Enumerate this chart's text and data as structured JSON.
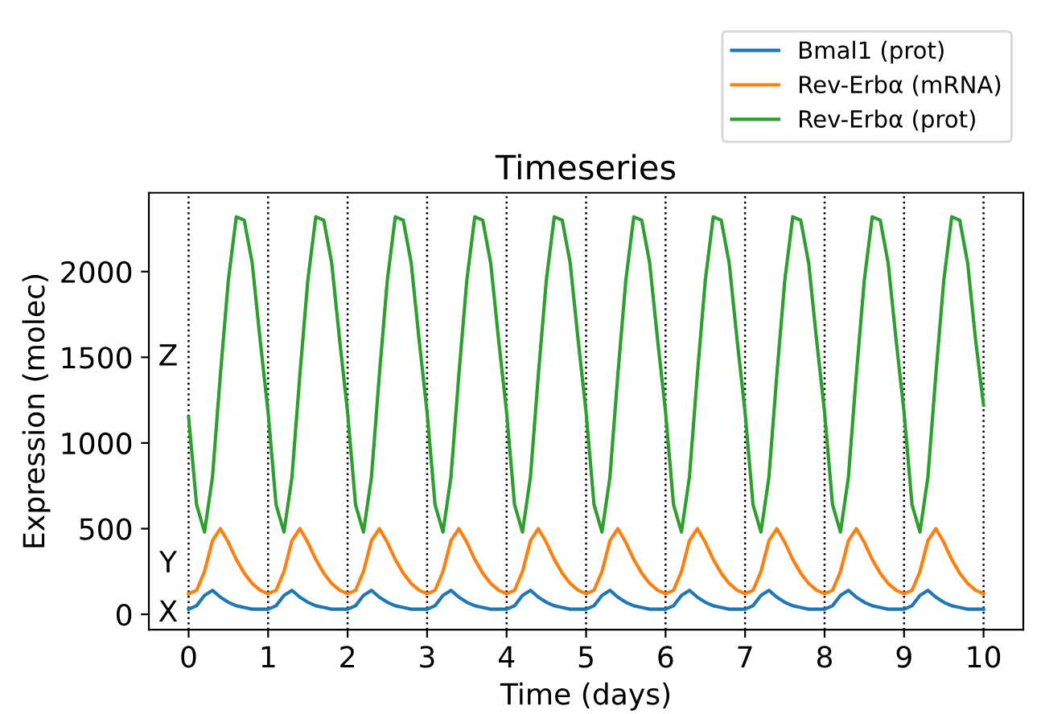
{
  "chart_data": {
    "type": "line",
    "title": "Timeseries",
    "xlabel": "Time (days)",
    "ylabel": "Expression (molec)",
    "x": [
      0,
      0.1,
      0.2,
      0.3,
      0.4,
      0.5,
      0.6,
      0.7,
      0.8,
      0.9,
      1,
      1.1,
      1.2,
      1.3,
      1.4,
      1.5,
      1.6,
      1.7,
      1.8,
      1.9,
      2,
      2.1,
      2.2,
      2.3,
      2.4,
      2.5,
      2.6,
      2.7,
      2.8,
      2.9,
      3,
      3.1,
      3.2,
      3.3,
      3.4,
      3.5,
      3.6,
      3.7,
      3.8,
      3.9,
      4,
      4.1,
      4.2,
      4.3,
      4.4,
      4.5,
      4.6,
      4.7,
      4.8,
      4.9,
      5,
      5.1,
      5.2,
      5.3,
      5.4,
      5.5,
      5.6,
      5.7,
      5.8,
      5.9,
      6,
      6.1,
      6.2,
      6.3,
      6.4,
      6.5,
      6.6,
      6.7,
      6.8,
      6.9,
      7,
      7.1,
      7.2,
      7.3,
      7.4,
      7.5,
      7.6,
      7.7,
      7.8,
      7.9,
      8,
      8.1,
      8.2,
      8.3,
      8.4,
      8.5,
      8.6,
      8.7,
      8.8,
      8.9,
      9,
      9.1,
      9.2,
      9.3,
      9.4,
      9.5,
      9.6,
      9.7,
      9.8,
      9.9,
      10
    ],
    "series": [
      {
        "name": "Bmal1 (prot)",
        "color": "#1f77b4",
        "values": [
          30,
          50,
          110,
          140,
          100,
          70,
          50,
          40,
          30,
          30,
          30,
          50,
          110,
          140,
          100,
          70,
          50,
          40,
          30,
          30,
          30,
          50,
          110,
          140,
          100,
          70,
          50,
          40,
          30,
          30,
          30,
          50,
          110,
          140,
          100,
          70,
          50,
          40,
          30,
          30,
          30,
          50,
          110,
          140,
          100,
          70,
          50,
          40,
          30,
          30,
          30,
          50,
          110,
          140,
          100,
          70,
          50,
          40,
          30,
          30,
          30,
          50,
          110,
          140,
          100,
          70,
          50,
          40,
          30,
          30,
          30,
          50,
          110,
          140,
          100,
          70,
          50,
          40,
          30,
          30,
          30,
          50,
          110,
          140,
          100,
          70,
          50,
          40,
          30,
          30,
          30,
          50,
          110,
          140,
          100,
          70,
          50,
          40,
          30,
          30,
          30
        ]
      },
      {
        "name": "Rev-Erbα (mRNA)",
        "color": "#ff7f0e",
        "values": [
          120,
          140,
          250,
          430,
          500,
          420,
          320,
          240,
          180,
          140,
          120,
          140,
          250,
          430,
          500,
          420,
          320,
          240,
          180,
          140,
          120,
          140,
          250,
          430,
          500,
          420,
          320,
          240,
          180,
          140,
          120,
          140,
          250,
          430,
          500,
          420,
          320,
          240,
          180,
          140,
          120,
          140,
          250,
          430,
          500,
          420,
          320,
          240,
          180,
          140,
          120,
          140,
          250,
          430,
          500,
          420,
          320,
          240,
          180,
          140,
          120,
          140,
          250,
          430,
          500,
          420,
          320,
          240,
          180,
          140,
          120,
          140,
          250,
          430,
          500,
          420,
          320,
          240,
          180,
          140,
          120,
          140,
          250,
          430,
          500,
          420,
          320,
          240,
          180,
          140,
          120,
          140,
          250,
          430,
          500,
          420,
          320,
          240,
          180,
          140,
          120
        ]
      },
      {
        "name": "Rev-Erbα (prot)",
        "color": "#2ca02c",
        "values": [
          1150,
          640,
          480,
          800,
          1400,
          1950,
          2320,
          2300,
          2050,
          1600,
          1180,
          640,
          480,
          800,
          1400,
          1950,
          2320,
          2300,
          2050,
          1600,
          1180,
          640,
          480,
          800,
          1400,
          1950,
          2320,
          2300,
          2050,
          1600,
          1180,
          640,
          480,
          800,
          1400,
          1950,
          2320,
          2300,
          2050,
          1600,
          1180,
          640,
          480,
          800,
          1400,
          1950,
          2320,
          2300,
          2050,
          1600,
          1180,
          640,
          480,
          800,
          1400,
          1950,
          2320,
          2300,
          2050,
          1600,
          1180,
          640,
          480,
          800,
          1400,
          1950,
          2320,
          2300,
          2050,
          1600,
          1180,
          640,
          480,
          800,
          1400,
          1950,
          2320,
          2300,
          2050,
          1600,
          1180,
          640,
          480,
          800,
          1400,
          1950,
          2320,
          2300,
          2050,
          1600,
          1180,
          640,
          480,
          800,
          1400,
          1950,
          2320,
          2300,
          2050,
          1600,
          1220
        ]
      }
    ],
    "xlim": [
      -0.5,
      10.5
    ],
    "ylim": [
      -90,
      2460
    ],
    "xticks": [
      0,
      1,
      2,
      3,
      4,
      5,
      6,
      7,
      8,
      9,
      10
    ],
    "yticks": [
      0,
      500,
      1000,
      1500,
      2000
    ],
    "ref_lines": [
      {
        "axis": "x",
        "value": 0,
        "color": "#000000",
        "line_style": "dotted"
      },
      {
        "axis": "x",
        "value": 1,
        "color": "#000000",
        "line_style": "dotted"
      },
      {
        "axis": "x",
        "value": 2,
        "color": "#000000",
        "line_style": "dotted"
      },
      {
        "axis": "x",
        "value": 3,
        "color": "#000000",
        "line_style": "dotted"
      },
      {
        "axis": "x",
        "value": 4,
        "color": "#000000",
        "line_style": "dotted"
      },
      {
        "axis": "x",
        "value": 5,
        "color": "#000000",
        "line_style": "dotted"
      },
      {
        "axis": "x",
        "value": 6,
        "color": "#000000",
        "line_style": "dotted"
      },
      {
        "axis": "x",
        "value": 7,
        "color": "#000000",
        "line_style": "dotted"
      },
      {
        "axis": "x",
        "value": 8,
        "color": "#000000",
        "line_style": "dotted"
      },
      {
        "axis": "x",
        "value": 9,
        "color": "#000000",
        "line_style": "dotted"
      },
      {
        "axis": "x",
        "value": 10,
        "color": "#000000",
        "line_style": "dotted"
      }
    ],
    "annotations": [
      "X",
      "Y",
      "Z"
    ],
    "legend": "top right",
    "grid": false,
    "marker": "none",
    "line_style": "solid"
  }
}
